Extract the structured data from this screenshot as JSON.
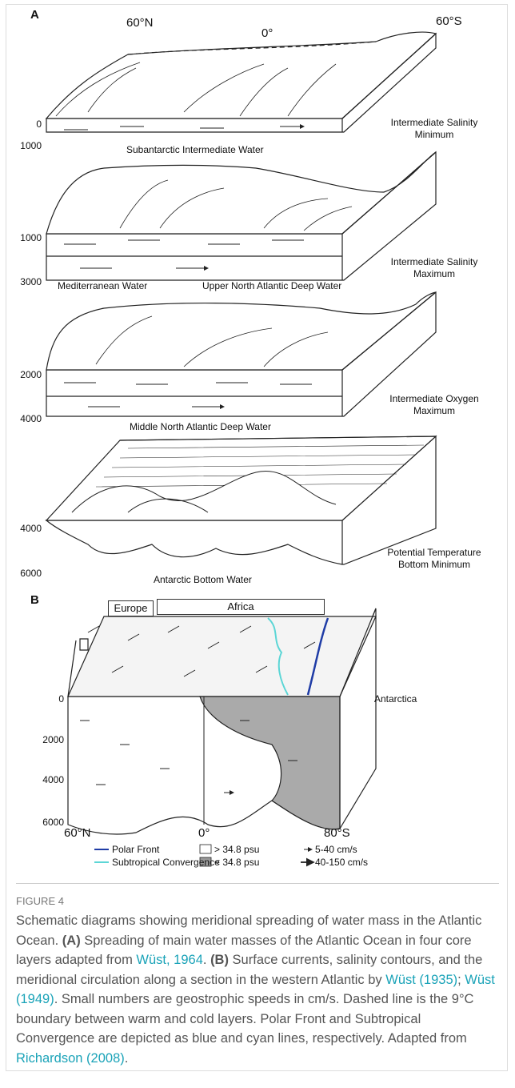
{
  "panel_a": {
    "label": "A",
    "lat_labels": [
      "60°N",
      "0°",
      "60°S"
    ],
    "blocks": [
      {
        "depths": [
          "0",
          "1000"
        ],
        "side_label": "Intermediate Salinity Minimum",
        "water": [
          "Subantarctic Intermediate Water"
        ]
      },
      {
        "depths": [
          "1000",
          "3000"
        ],
        "side_label": "Intermediate Salinity Maximum",
        "water": [
          "Mediterranean Water",
          "Upper North Atlantic Deep Water"
        ]
      },
      {
        "depths": [
          "2000",
          "4000"
        ],
        "side_label": "Intermediate Oxygen Maximum",
        "water": [
          "Middle North Atlantic Deep Water"
        ]
      },
      {
        "depths": [
          "4000",
          "6000"
        ],
        "side_label": "Potential Temperature Bottom Minimum",
        "water": [
          "Antarctic Bottom Water"
        ]
      }
    ]
  },
  "panel_b": {
    "label": "B",
    "continents": [
      "Europe",
      "Africa",
      "Antarctica"
    ],
    "depths": [
      "0",
      "2000",
      "4000",
      "6000"
    ],
    "lat_labels": [
      "60°N",
      "0°",
      "80°S"
    ],
    "legend": [
      "Polar Front",
      "Subtropical Convergence",
      "> 34.8 psu",
      "< 34.8 psu",
      "5-40 cm/s",
      "40-150 cm/s"
    ]
  },
  "caption": {
    "figure_label": "FIGURE 4",
    "text": [
      "Schematic diagrams showing meridional spreading of water mass in the Atlantic Ocean. ",
      "(A)",
      " Spreading of main water masses of the Atlantic Ocean in four core layers adapted from ",
      "Wüst, 1964",
      ". ",
      "(B)",
      " Surface currents, salinity contours, and the meridional circulation along a section in the western Atlantic by ",
      "Wüst (1935)",
      "; ",
      "Wüst (1949)",
      ". Small numbers are geostrophic speeds in cm/s. Dashed line is the 9°C boundary between warm and cold layers. Polar Front and Subtropical Convergence are depicted as blue and cyan lines, respectively. Adapted from ",
      "Richardson (2008)",
      "."
    ]
  }
}
